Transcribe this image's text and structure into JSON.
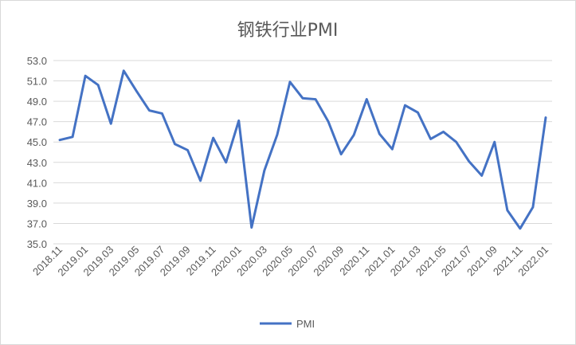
{
  "chart_data": {
    "type": "line",
    "title": "钢铁行业PMI",
    "xlabel": "",
    "ylabel": "",
    "ylim": [
      35.0,
      53.0
    ],
    "yticks": [
      "35.0",
      "37.0",
      "39.0",
      "41.0",
      "43.0",
      "45.0",
      "47.0",
      "49.0",
      "51.0",
      "53.0"
    ],
    "grid": true,
    "legend_position": "bottom",
    "x": [
      "2018.11",
      "2018.12",
      "2019.01",
      "2019.02",
      "2019.03",
      "2019.04",
      "2019.05",
      "2019.06",
      "2019.07",
      "2019.08",
      "2019.09",
      "2019.10",
      "2019.11",
      "2019.12",
      "2020.01",
      "2020.02",
      "2020.03",
      "2020.04",
      "2020.05",
      "2020.06",
      "2020.07",
      "2020.08",
      "2020.09",
      "2020.10",
      "2020.11",
      "2020.12",
      "2021.01",
      "2021.02",
      "2021.03",
      "2021.04",
      "2021.05",
      "2021.06",
      "2021.07",
      "2021.08",
      "2021.09",
      "2021.10",
      "2021.11",
      "2021.12",
      "2022.01"
    ],
    "xticks": [
      "2018.11",
      "2019.01",
      "2019.03",
      "2019.05",
      "2019.07",
      "2019.09",
      "2019.11",
      "2020.01",
      "2020.03",
      "2020.05",
      "2020.07",
      "2020.09",
      "2020.11",
      "2021.01",
      "2021.03",
      "2021.05",
      "2021.07",
      "2021.09",
      "2021.11",
      "2022.01"
    ],
    "series": [
      {
        "name": "PMI",
        "color": "#4472c4",
        "values": [
          45.2,
          45.5,
          51.5,
          50.6,
          46.8,
          52.0,
          50.0,
          48.1,
          47.8,
          44.8,
          44.2,
          41.2,
          45.4,
          43.0,
          47.1,
          36.6,
          42.2,
          45.7,
          50.9,
          49.3,
          49.2,
          47.0,
          43.8,
          45.7,
          49.2,
          45.8,
          44.3,
          48.6,
          47.9,
          45.3,
          46.0,
          45.0,
          43.1,
          41.7,
          45.0,
          38.3,
          36.5,
          38.6,
          47.4
        ]
      }
    ]
  }
}
